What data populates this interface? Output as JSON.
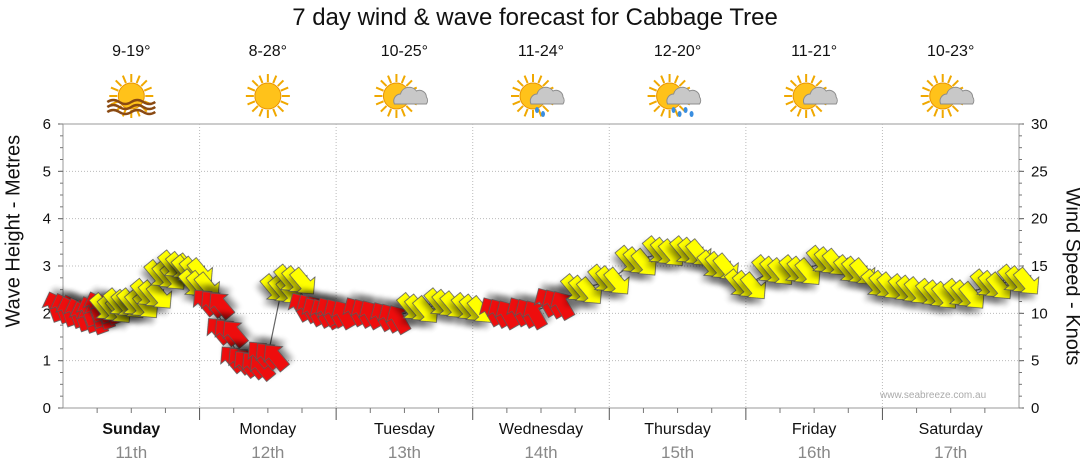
{
  "chart_data": {
    "type": "line",
    "title": "7 day wind & wave forecast for Cabbage Tree",
    "ylabel_left": "Wave Height - Metres",
    "ylabel_right": "Wind Speed - Knots",
    "ylim_left": [
      0,
      6
    ],
    "ylim_right": [
      0,
      30
    ],
    "yticks_left": [
      "0",
      "1",
      "2",
      "3",
      "4",
      "5",
      "6"
    ],
    "yticks_right": [
      "0",
      "5",
      "10",
      "15",
      "20",
      "25",
      "30"
    ],
    "grid": true,
    "days": [
      {
        "day": "Sunday",
        "date": "11th",
        "temp": "9-19°",
        "icon": "sun-haze-icon",
        "bold": true
      },
      {
        "day": "Monday",
        "date": "12th",
        "temp": "8-28°",
        "icon": "sun-icon",
        "bold": false
      },
      {
        "day": "Tuesday",
        "date": "13th",
        "temp": "10-25°",
        "icon": "partly-cloudy-icon",
        "bold": false
      },
      {
        "day": "Wednesday",
        "date": "14th",
        "temp": "11-24°",
        "icon": "sun-cloud-light-rain-icon",
        "bold": false
      },
      {
        "day": "Thursday",
        "date": "15th",
        "temp": "12-20°",
        "icon": "sun-cloud-rain-icon",
        "bold": false
      },
      {
        "day": "Friday",
        "date": "16th",
        "temp": "11-21°",
        "icon": "partly-cloudy-icon",
        "bold": false
      },
      {
        "day": "Saturday",
        "date": "17th",
        "temp": "10-23°",
        "icon": "partly-cloudy-icon",
        "bold": false
      }
    ],
    "series": [
      {
        "name": "Wave height",
        "x": [
          0,
          0.1,
          0.2,
          0.25,
          0.3,
          0.35,
          0.45,
          0.55,
          0.65,
          0.75,
          0.85,
          0.95,
          1.0,
          1.1,
          1.2,
          1.3,
          1.4,
          1.5,
          1.6,
          1.7,
          1.8,
          1.9,
          2.0,
          2.2,
          2.4,
          2.6,
          2.8,
          3.0,
          3.2,
          3.4,
          3.6,
          3.8,
          4.0,
          4.2,
          4.4,
          4.6,
          4.8,
          5.0,
          5.2,
          5.4,
          5.6,
          5.8,
          6.0,
          6.2,
          6.4,
          6.6,
          6.8,
          7.0
        ],
        "values": [
          2.1,
          2.0,
          1.9,
          2.0,
          2.1,
          2.1,
          2.2,
          2.2,
          2.4,
          2.8,
          3.0,
          2.9,
          2.6,
          2.2,
          1.6,
          1.0,
          0.9,
          1.1,
          2.5,
          2.7,
          2.1,
          2.0,
          2.0,
          2.0,
          1.9,
          2.1,
          2.2,
          2.1,
          2.0,
          2.0,
          2.2,
          2.5,
          2.7,
          3.1,
          3.3,
          3.3,
          3.0,
          2.6,
          2.9,
          2.9,
          3.1,
          2.9,
          2.6,
          2.5,
          2.4,
          2.4,
          2.6,
          2.7
        ]
      },
      {
        "name": "Wind",
        "x": [
          0,
          0.1,
          0.2,
          0.25,
          0.3,
          0.35,
          0.45,
          0.55,
          0.65,
          0.75,
          0.85,
          0.95,
          1.0,
          1.1,
          1.2,
          1.3,
          1.4,
          1.5,
          1.6,
          1.7,
          1.8,
          1.9,
          2.0,
          2.2,
          2.4,
          2.6,
          2.8,
          3.0,
          3.2,
          3.4,
          3.6,
          3.8,
          4.0,
          4.2,
          4.4,
          4.6,
          4.8,
          5.0,
          5.2,
          5.4,
          5.6,
          5.8,
          6.0,
          6.2,
          6.4,
          6.6,
          6.8,
          7.0
        ],
        "values": [
          10.5,
          10,
          9.5,
          10,
          10.5,
          10.5,
          11,
          11,
          12,
          14,
          15,
          14.5,
          13,
          11,
          8,
          5,
          4.5,
          5.5,
          12.5,
          13.5,
          10.5,
          10,
          10,
          10,
          9.5,
          10.5,
          11,
          10.5,
          10,
          10,
          11,
          12.5,
          13.5,
          15.5,
          16.5,
          16.5,
          15,
          13,
          14.5,
          14.5,
          15.5,
          14.5,
          13,
          12.5,
          12,
          12,
          13,
          13.5
        ],
        "colors": [
          "red",
          "red",
          "red",
          "red",
          "red",
          "yellow",
          "yellow",
          "yellow",
          "yellow",
          "yellow",
          "yellow",
          "yellow",
          "yellow",
          "red",
          "red",
          "red",
          "red",
          "red",
          "yellow",
          "yellow",
          "red",
          "red",
          "red",
          "red",
          "red",
          "yellow",
          "yellow",
          "yellow",
          "red",
          "red",
          "red",
          "yellow",
          "yellow",
          "yellow",
          "yellow",
          "yellow",
          "yellow",
          "yellow",
          "yellow",
          "yellow",
          "yellow",
          "yellow",
          "yellow",
          "yellow",
          "yellow",
          "yellow",
          "yellow",
          "yellow"
        ],
        "direction_deg": [
          200,
          200,
          200,
          200,
          200,
          40,
          40,
          40,
          40,
          40,
          40,
          40,
          40,
          220,
          220,
          220,
          220,
          220,
          40,
          40,
          210,
          210,
          210,
          210,
          210,
          40,
          40,
          40,
          210,
          210,
          210,
          40,
          40,
          40,
          40,
          40,
          40,
          40,
          40,
          40,
          40,
          40,
          40,
          40,
          40,
          40,
          40,
          40
        ]
      }
    ],
    "palette": {
      "red": "#ee1111",
      "yellow": "#ffff00",
      "outline": "#555555",
      "grid": "#bbbbbb"
    },
    "watermark": "www.seabreeze.com.au"
  }
}
